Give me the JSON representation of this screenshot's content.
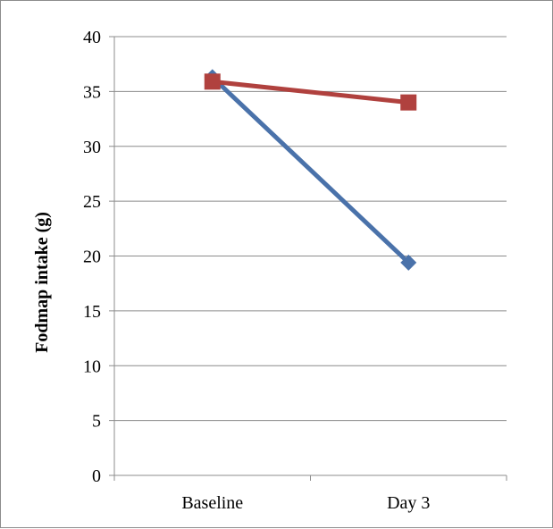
{
  "chart_data": {
    "type": "line",
    "title": "",
    "xlabel": "",
    "ylabel": "Fodmap intake (g)",
    "categories": [
      "Baseline",
      "Day 3"
    ],
    "ylim": [
      0,
      40
    ],
    "yticks": [
      0,
      5,
      10,
      15,
      20,
      25,
      30,
      35,
      40
    ],
    "grid": true,
    "legend": "none",
    "series": [
      {
        "color": "#4a72aa",
        "marker": "diamond",
        "values": [
          36.3,
          19.4
        ]
      },
      {
        "color": "#b0413e",
        "marker": "square",
        "values": [
          35.9,
          34.0
        ]
      }
    ]
  }
}
